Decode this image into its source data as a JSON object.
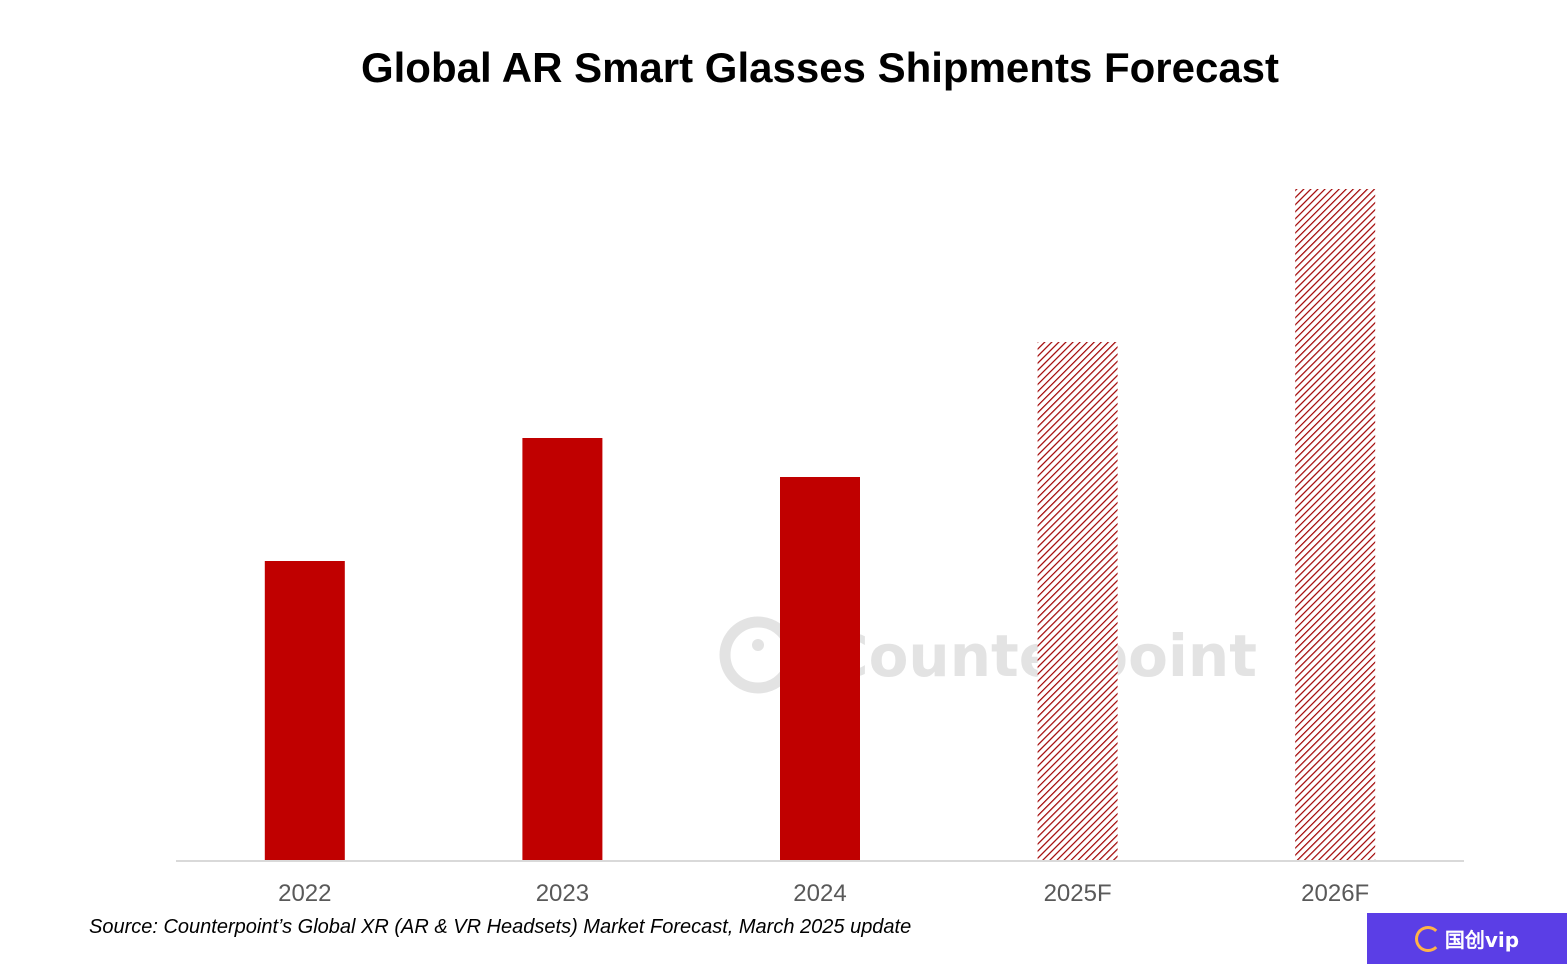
{
  "chart_data": {
    "type": "bar",
    "title": "Global AR Smart Glasses Shipments Forecast",
    "xlabel": "",
    "ylabel": "",
    "categories": [
      "2022",
      "2023",
      "2024",
      "2025F",
      "2026F"
    ],
    "values": [
      100,
      141,
      128,
      173,
      224
    ],
    "forecast": [
      false,
      false,
      false,
      true,
      true
    ],
    "ylim": [
      0,
      240
    ],
    "grid": false,
    "legend": "none",
    "colors": {
      "actual": "#c00000",
      "forecast_hatch": "#a00000",
      "baseline": "#d9d9d9",
      "tick_text": "#595959"
    }
  },
  "source": "Source: Counterpoint’s Global XR (AR & VR Headsets) Market Forecast, March 2025 update",
  "watermark": {
    "text": "Counterpoint",
    "icon": "counterpoint-logo-icon"
  },
  "badge": {
    "text": "国创vip",
    "icon": "badge-logo-icon",
    "color": "#5b3ee6"
  }
}
